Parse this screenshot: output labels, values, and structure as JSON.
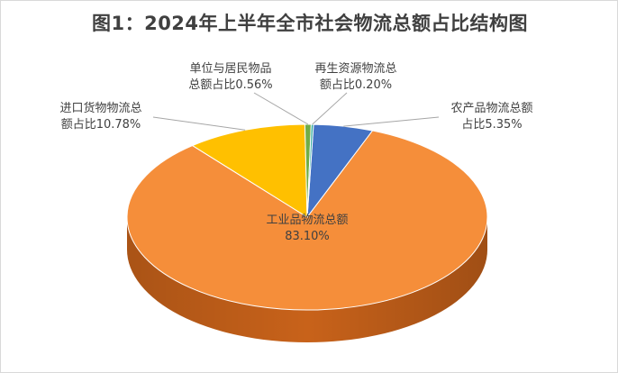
{
  "chart_data": {
    "type": "pie",
    "title": "图1：2024年上半年全市社会物流总额占比结构图",
    "slices": [
      {
        "lines": [
          "农产品物流总额",
          "占比5.35%"
        ],
        "value": 5.35,
        "color": "#4472C4",
        "side": "#2F5597"
      },
      {
        "lines": [
          "工业品物流总额",
          "83.10%"
        ],
        "value": 83.1,
        "color": "#F58E3A",
        "side": "#C8621A"
      },
      {
        "lines": [
          "进口货物物流总",
          "额占比10.78%"
        ],
        "value": 10.78,
        "color": "#FFC000",
        "side": "#C99700"
      },
      {
        "lines": [
          "单位与居民物品",
          "总额占比0.56%"
        ],
        "value": 0.56,
        "color": "#70AD47",
        "side": "#4E8A2E"
      },
      {
        "lines": [
          "再生资源物流总",
          "额占比0.20%"
        ],
        "value": 0.2,
        "color": "#26A69A",
        "side": "#1B7A70"
      }
    ],
    "legend": "none",
    "style": "3d-pie"
  }
}
